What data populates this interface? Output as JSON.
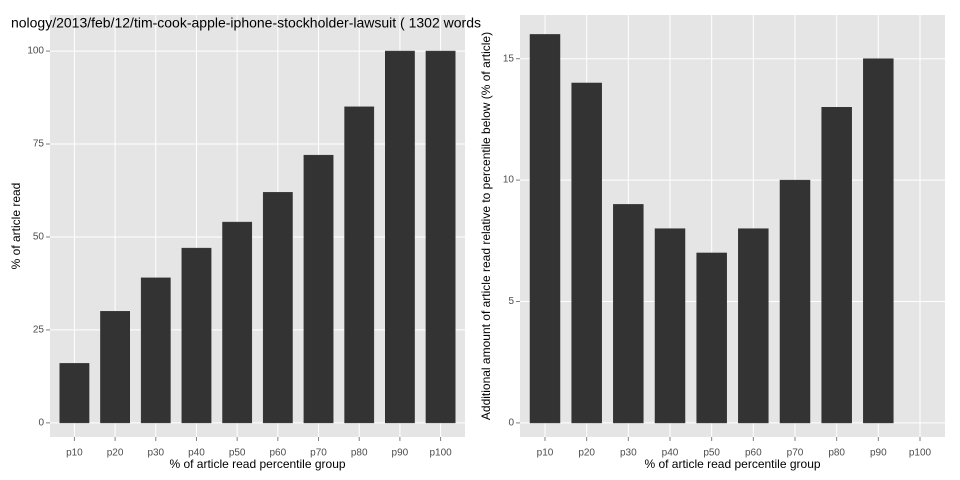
{
  "chart_data": [
    {
      "type": "bar",
      "title": "nology/2013/feb/12/tim-cook-apple-iphone-stockholder-lawsuit ( 1302 words",
      "x_label": "% of article read percentile group",
      "y_label": "% of article read",
      "categories": [
        "p10",
        "p20",
        "p30",
        "p40",
        "p50",
        "p60",
        "p70",
        "p80",
        "p90",
        "p100"
      ],
      "values": [
        16,
        30,
        39,
        47,
        54,
        62,
        72,
        85,
        100,
        100
      ],
      "color": "#333333",
      "ylim": [
        -3.8,
        109.7
      ],
      "yticks": [
        0,
        25,
        50,
        75,
        100
      ],
      "grid": true
    },
    {
      "type": "bar",
      "x_label": "% of article read percentile group",
      "y_label": "Additional amount of article read relative to percentile below (% of article)",
      "categories": [
        "p10",
        "p20",
        "p30",
        "p40",
        "p50",
        "p60",
        "p70",
        "p80",
        "p90",
        "p100"
      ],
      "values": [
        16,
        14,
        9,
        8,
        7,
        8,
        10,
        13,
        15,
        0
      ],
      "color": "#333333",
      "ylim": [
        -0.58,
        16.8
      ],
      "yticks": [
        0,
        5,
        10,
        15
      ],
      "grid": true
    }
  ]
}
